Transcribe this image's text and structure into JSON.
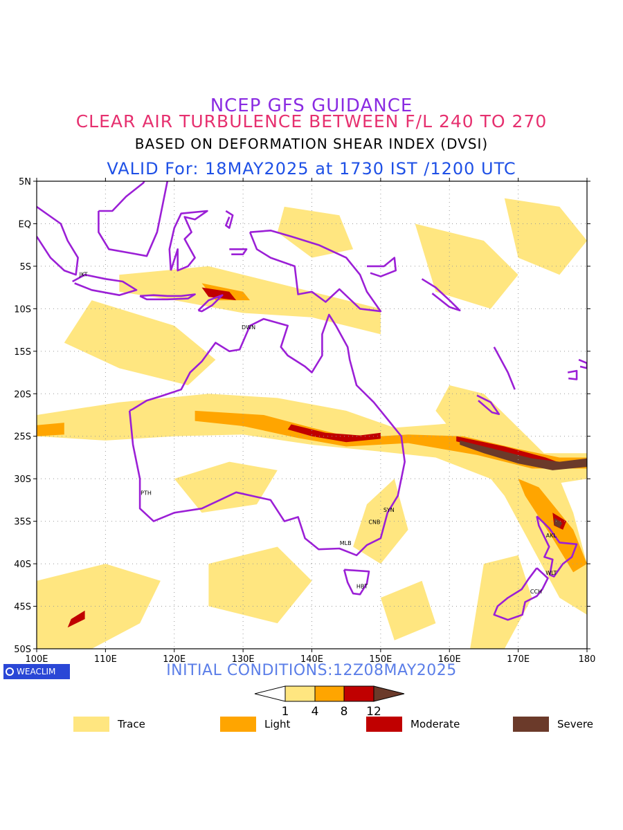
{
  "titles": {
    "line1": "NCEP GFS GUIDANCE",
    "line2": "CLEAR AIR TURBULENCE BETWEEN F/L 240 TO 270",
    "line3": "BASED ON DEFORMATION SHEAR INDEX (DVSI)",
    "line4": "VALID For: 18MAY2025 at 1730 IST /1200 UTC"
  },
  "map": {
    "lat_range": [
      -50,
      5
    ],
    "lon_range": [
      100,
      180
    ],
    "lat_labels": [
      "5N",
      "EQ",
      "5S",
      "10S",
      "15S",
      "20S",
      "25S",
      "30S",
      "35S",
      "40S",
      "45S",
      "50S"
    ],
    "lon_labels": [
      "100E",
      "110E",
      "120E",
      "130E",
      "140E",
      "150E",
      "160E",
      "170E",
      "180"
    ],
    "stations": [
      {
        "code": "JKT",
        "lon": 106.8,
        "lat": -6.2
      },
      {
        "code": "DWN",
        "lon": 130.8,
        "lat": -12.4
      },
      {
        "code": "PTH",
        "lon": 115.9,
        "lat": -31.9
      },
      {
        "code": "SYN",
        "lon": 151.2,
        "lat": -33.9
      },
      {
        "code": "CNB",
        "lon": 149.1,
        "lat": -35.3
      },
      {
        "code": "MLB",
        "lon": 144.9,
        "lat": -37.8
      },
      {
        "code": "HBT",
        "lon": 147.3,
        "lat": -42.9
      },
      {
        "code": "AKL",
        "lon": 174.8,
        "lat": -36.9
      },
      {
        "code": "WLT",
        "lon": 174.8,
        "lat": -41.3
      },
      {
        "code": "CCH",
        "lon": 172.6,
        "lat": -43.5
      }
    ],
    "colors": {
      "trace": "#ffe680",
      "light": "#ffa500",
      "moderate": "#c00000",
      "severe": "#6b3a2a",
      "coast": "#9b1fd6"
    }
  },
  "footer": {
    "brand": "WEACLIM",
    "initial": "INITIAL CONDITIONS:12Z08MAY2025"
  },
  "colorbar": {
    "ticks": [
      "1",
      "4",
      "8",
      "12"
    ]
  },
  "legend": [
    {
      "label": "Trace",
      "color": "#ffe680"
    },
    {
      "label": "Light",
      "color": "#ffa500"
    },
    {
      "label": "Moderate",
      "color": "#c00000"
    },
    {
      "label": "Severe",
      "color": "#6b3a2a"
    }
  ]
}
